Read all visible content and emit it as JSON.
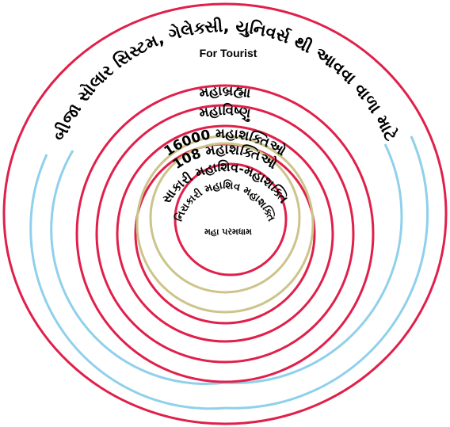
{
  "colors": {
    "ring_red": "#e0204a",
    "ring_blue": "#8fd0ec",
    "ring_khaki": "#ccc48a",
    "background": "#ffffff",
    "text": "#000000"
  },
  "labels": {
    "outer_title": "બીજા સોલાર સિસ્ટમ, ગેલેક્સી, યુનિવર્સ થી આવવા વાળા માટે",
    "for_tourist": "For Tourist",
    "mahabrahma": "મહાબ્રહ્મા",
    "mahavishnu": "મહાવિષ્ણુ",
    "mahashakti_16000": "16000 મહાશક્તિઓ",
    "mahashakti_108": "108 મહાશક્તિઓ",
    "sakari": "સાકારી મહાશિવ-મહાશક્તિ",
    "nirakari": "નિરાકારી મહાશિવ મહાશક્તિ",
    "param_dham": "મહા પરમધામ"
  }
}
